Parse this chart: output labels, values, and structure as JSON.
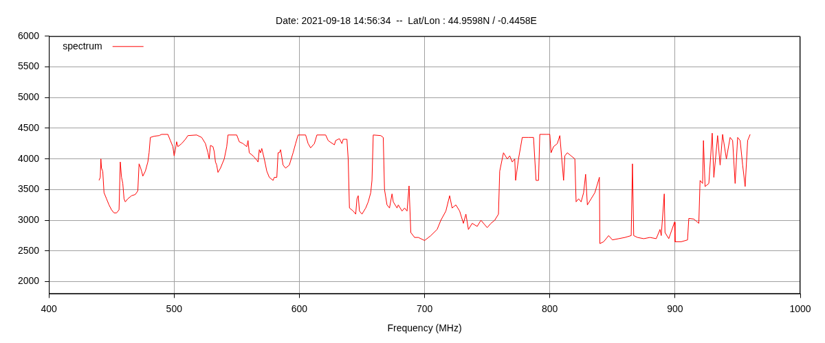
{
  "chart_data": {
    "type": "line",
    "title": "Date: 2021-09-18 14:56:34  --  Lat/Lon : 44.9598N / -0.4458E",
    "xlabel": "Frequency (MHz)",
    "x": [
      440,
      441,
      441.5,
      442,
      443,
      444,
      446,
      448,
      450,
      452,
      454,
      456,
      457,
      458,
      459,
      460,
      461,
      463,
      466,
      469,
      471,
      472,
      473,
      474,
      475,
      477,
      479,
      480,
      481,
      484,
      488,
      490,
      495,
      497,
      499,
      500,
      501,
      502,
      503,
      506,
      509,
      511,
      518,
      522,
      525,
      527,
      528,
      529,
      531,
      532,
      533,
      534,
      535,
      537,
      540,
      542,
      543,
      550,
      552,
      555,
      558,
      559,
      560,
      563,
      566,
      567,
      568,
      569,
      570,
      572,
      574,
      576,
      579,
      580,
      582,
      583,
      584,
      585,
      587,
      589,
      592,
      595,
      597,
      599,
      605,
      607,
      609,
      612,
      614,
      621,
      623,
      625,
      628,
      629,
      632,
      634,
      635,
      638,
      639,
      640,
      643,
      645,
      646,
      647,
      648,
      650,
      653,
      655,
      657,
      658,
      659,
      665,
      667,
      668,
      670,
      672,
      674,
      675,
      678,
      679,
      682,
      684,
      686,
      687.6,
      689,
      692,
      695,
      700,
      705,
      710,
      713,
      717,
      720,
      722,
      725,
      728,
      731,
      733,
      735,
      738,
      742,
      745,
      750,
      753,
      756,
      759,
      760,
      763,
      766,
      768,
      770,
      772,
      772.7,
      775,
      778,
      783,
      787,
      789,
      791,
      792,
      797,
      800,
      801,
      803,
      806,
      808,
      811,
      812,
      814,
      817,
      820,
      821,
      823,
      825,
      827,
      828.6,
      830,
      833,
      836,
      839.6,
      840,
      843,
      847,
      850,
      855,
      860,
      865,
      866,
      867,
      870,
      875,
      880,
      885,
      888,
      889,
      891.4,
      892,
      895,
      899.6,
      900,
      905,
      910,
      911,
      915,
      919,
      920,
      922,
      922.7,
      924,
      927,
      929.7,
      931,
      934,
      936,
      938,
      941,
      944,
      946,
      948,
      950,
      952,
      954,
      956,
      958,
      960
    ],
    "series": [
      {
        "name": "spectrum",
        "color": "#ff0000",
        "values": [
          3650,
          3700,
          4000,
          3850,
          3800,
          3450,
          3350,
          3250,
          3170,
          3120,
          3120,
          3170,
          3950,
          3700,
          3600,
          3350,
          3300,
          3350,
          3400,
          3420,
          3480,
          3920,
          3870,
          3800,
          3720,
          3800,
          3950,
          4100,
          4350,
          4370,
          4380,
          4400,
          4400,
          4300,
          4200,
          4050,
          4150,
          4280,
          4200,
          4250,
          4320,
          4380,
          4390,
          4350,
          4250,
          4100,
          4000,
          4220,
          4200,
          4120,
          3950,
          3900,
          3780,
          3850,
          4000,
          4200,
          4390,
          4390,
          4280,
          4250,
          4200,
          4300,
          4100,
          4050,
          3980,
          3950,
          4150,
          4100,
          4170,
          4000,
          3800,
          3700,
          3650,
          3700,
          3700,
          4100,
          4100,
          4150,
          3900,
          3850,
          3900,
          4100,
          4250,
          4390,
          4390,
          4250,
          4180,
          4250,
          4390,
          4390,
          4300,
          4270,
          4230,
          4300,
          4330,
          4250,
          4320,
          4320,
          4000,
          3200,
          3150,
          3100,
          3350,
          3400,
          3150,
          3100,
          3200,
          3300,
          3450,
          3650,
          4390,
          4380,
          4350,
          3500,
          3250,
          3200,
          3430,
          3300,
          3200,
          3250,
          3150,
          3200,
          3150,
          3560,
          2800,
          2720,
          2720,
          2670,
          2750,
          2850,
          3000,
          3150,
          3400,
          3200,
          3250,
          3150,
          2950,
          3100,
          2850,
          2950,
          2900,
          3000,
          2880,
          2950,
          3000,
          3100,
          3800,
          4100,
          4000,
          4050,
          3950,
          4000,
          3650,
          4000,
          4350,
          4350,
          4350,
          3650,
          3650,
          4400,
          4400,
          4400,
          4100,
          4200,
          4250,
          4380,
          3650,
          4050,
          4100,
          4050,
          4000,
          3300,
          3350,
          3300,
          3450,
          3750,
          3250,
          3350,
          3450,
          3700,
          2620,
          2650,
          2750,
          2680,
          2700,
          2720,
          2750,
          3920,
          2750,
          2720,
          2700,
          2720,
          2700,
          2850,
          2750,
          3430,
          2800,
          2700,
          2970,
          2650,
          2650,
          2680,
          3030,
          3020,
          2950,
          3650,
          3600,
          4300,
          3550,
          3600,
          4420,
          3700,
          4380,
          3900,
          4400,
          4000,
          4350,
          4300,
          3600,
          4350,
          4300,
          3900,
          3550,
          4300,
          4400
        ]
      }
    ],
    "xlim": [
      400,
      1000
    ],
    "xticks": [
      400,
      500,
      600,
      700,
      800,
      900,
      1000
    ],
    "ylim": [
      1800,
      6000
    ],
    "yticks": [
      2000,
      2500,
      3000,
      3500,
      4000,
      4500,
      5000,
      5500,
      6000
    ],
    "grid": true,
    "legend": "top left",
    "marker": "none",
    "line_style": "solid"
  }
}
